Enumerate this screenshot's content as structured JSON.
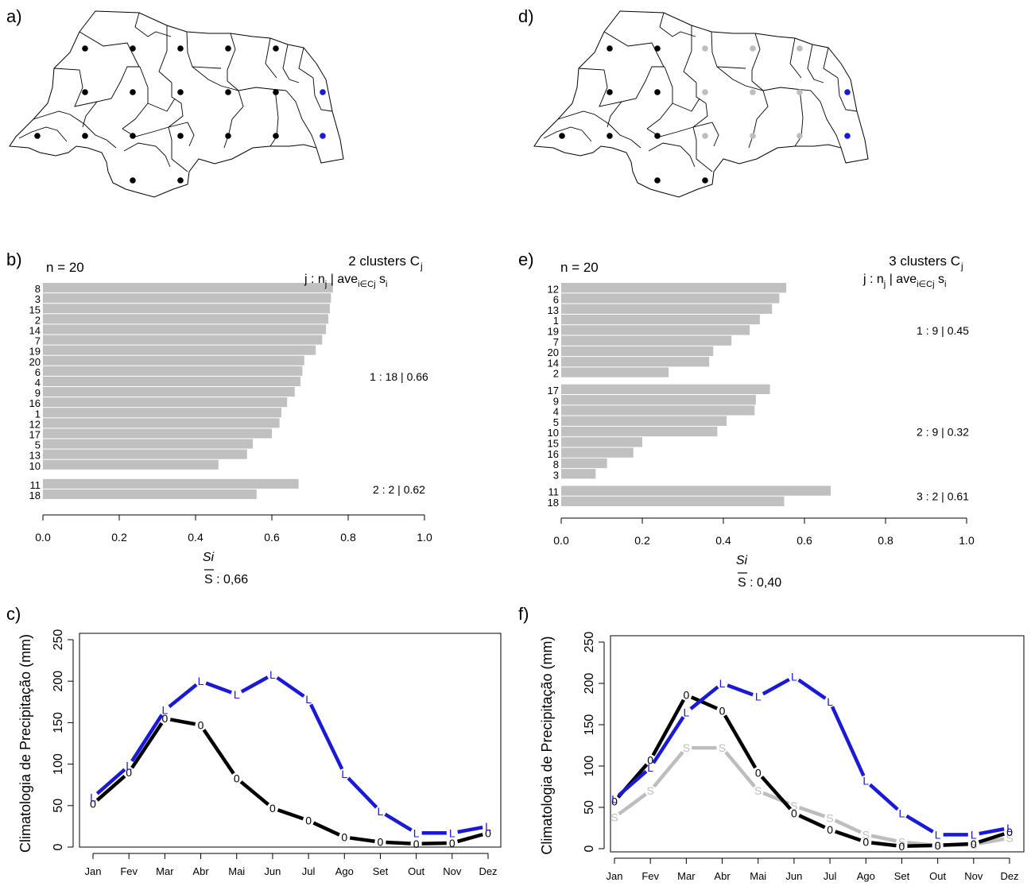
{
  "panels": {
    "a": "a)",
    "b": "b)",
    "c": "c)",
    "d": "d)",
    "e": "e)",
    "f": "f)"
  },
  "colors": {
    "blue": "#1a1ad6",
    "black": "#000000",
    "gray": "#bdbdbd",
    "bar": "#c0c0c0"
  },
  "chart_data": [
    {
      "type": "map",
      "panel": "a)",
      "stations": [
        {
          "lon": 0,
          "lat": 0,
          "group": "black"
        }
      ],
      "groups": [
        "black",
        "blue"
      ]
    },
    {
      "type": "bar",
      "panel": "b)",
      "n_label": "n = 20",
      "clusters_label": "2  clusters  C",
      "clusters_sub": "j",
      "header_label": "j :  n",
      "header_rest": " | ave",
      "header_sub": "i∈Cj",
      "header_end": "  s",
      "header_end_sub": "i",
      "xlabel": "Si",
      "mean_label": "S",
      "mean_value": " : 0,66",
      "xticks": [
        "0.0",
        "0.2",
        "0.4",
        "0.6",
        "0.8",
        "1.0"
      ],
      "xlim": [
        0,
        1
      ],
      "clusters": [
        {
          "summary": "1 :   18  |  0.66",
          "categories": [
            "8",
            "3",
            "15",
            "2",
            "14",
            "7",
            "19",
            "20",
            "6",
            "4",
            "9",
            "16",
            "1",
            "12",
            "17",
            "5",
            "13",
            "10"
          ],
          "values": [
            0.76,
            0.755,
            0.752,
            0.748,
            0.742,
            0.732,
            0.715,
            0.685,
            0.68,
            0.675,
            0.66,
            0.64,
            0.625,
            0.62,
            0.6,
            0.55,
            0.535,
            0.46
          ]
        },
        {
          "summary": "2 :   2  |  0.62",
          "categories": [
            "11",
            "18"
          ],
          "values": [
            0.67,
            0.56
          ]
        }
      ]
    },
    {
      "type": "line",
      "panel": "c)",
      "ylabel": "Climatologia de Precipitação (mm)",
      "yticks": [
        "0",
        "50",
        "100",
        "150",
        "200",
        "250"
      ],
      "ylim": [
        0,
        250
      ],
      "categories": [
        "Jan",
        "Fev",
        "Mar",
        "Abr",
        "Mai",
        "Jun",
        "Jul",
        "Ago",
        "Set",
        "Out",
        "Nov",
        "Dez"
      ],
      "series": [
        {
          "marker": "0",
          "color": "#000000",
          "values": [
            52,
            90,
            155,
            147,
            83,
            47,
            32,
            12,
            6,
            4,
            5,
            17
          ]
        },
        {
          "marker": "L",
          "color": "#1a1ad6",
          "values": [
            60,
            98,
            165,
            200,
            184,
            208,
            178,
            88,
            43,
            17,
            17,
            25
          ]
        }
      ]
    },
    {
      "type": "map",
      "panel": "d)",
      "groups": [
        "black",
        "gray",
        "blue"
      ]
    },
    {
      "type": "bar",
      "panel": "e)",
      "n_label": "n = 20",
      "clusters_label": "3  clusters  C",
      "clusters_sub": "j",
      "header_label": "j :  n",
      "header_rest": " | ave",
      "header_sub": "i∈Cj",
      "header_end": "  s",
      "header_end_sub": "i",
      "xlabel": "Si",
      "mean_label": "S",
      "mean_value": " : 0,40",
      "xticks": [
        "0.0",
        "0.2",
        "0.4",
        "0.6",
        "0.8",
        "1.0"
      ],
      "xlim": [
        0,
        1
      ],
      "clusters": [
        {
          "summary": "1 :   9  |  0.45",
          "categories": [
            "12",
            "6",
            "13",
            "1",
            "19",
            "7",
            "20",
            "14",
            "2"
          ],
          "values": [
            0.555,
            0.538,
            0.52,
            0.49,
            0.465,
            0.42,
            0.375,
            0.365,
            0.265
          ]
        },
        {
          "summary": "2 :   9  |  0.32",
          "categories": [
            "17",
            "9",
            "4",
            "5",
            "10",
            "15",
            "16",
            "8",
            "3"
          ],
          "values": [
            0.515,
            0.48,
            0.477,
            0.408,
            0.385,
            0.2,
            0.178,
            0.113,
            0.085
          ]
        },
        {
          "summary": "3 :   2  |  0.61",
          "categories": [
            "11",
            "18"
          ],
          "values": [
            0.665,
            0.55
          ]
        }
      ]
    },
    {
      "type": "line",
      "panel": "f)",
      "ylabel": "Climatologia de Precipitação (mm)",
      "yticks": [
        "0",
        "50",
        "100",
        "150",
        "200",
        "250"
      ],
      "ylim": [
        0,
        250
      ],
      "categories": [
        "Jan",
        "Fev",
        "Mar",
        "Abr",
        "Mai",
        "Jun",
        "Jul",
        "Ago",
        "Set",
        "Out",
        "Nov",
        "Dez"
      ],
      "series": [
        {
          "marker": "S",
          "color": "#bdbdbd",
          "values": [
            38,
            70,
            122,
            122,
            70,
            52,
            37,
            17,
            8,
            4,
            5,
            13
          ]
        },
        {
          "marker": "0",
          "color": "#000000",
          "values": [
            57,
            107,
            186,
            167,
            92,
            43,
            23,
            8,
            3,
            4,
            6,
            20
          ]
        },
        {
          "marker": "L",
          "color": "#1a1ad6",
          "values": [
            60,
            98,
            165,
            200,
            184,
            208,
            178,
            82,
            43,
            17,
            17,
            25
          ]
        }
      ]
    }
  ]
}
